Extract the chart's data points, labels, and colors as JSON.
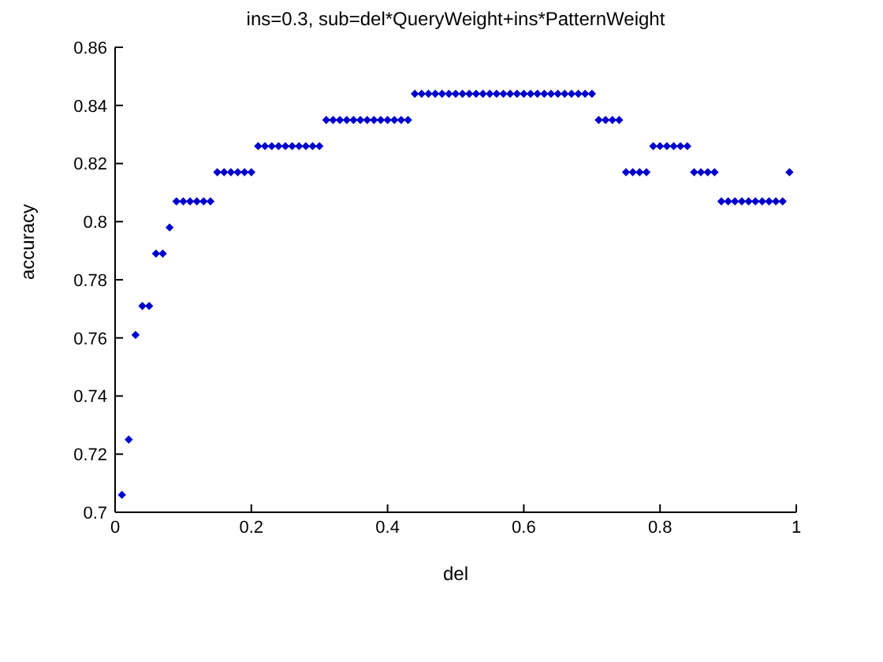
{
  "chart_data": {
    "type": "scatter",
    "title": "ins=0.3, sub=del*QueryWeight+ins*PatternWeight",
    "xlabel": "del",
    "ylabel": "accuracy",
    "x": [
      0.01,
      0.02,
      0.03,
      0.04,
      0.05,
      0.06,
      0.07,
      0.08,
      0.09,
      0.1,
      0.11,
      0.12,
      0.13,
      0.14,
      0.15,
      0.16,
      0.17,
      0.18,
      0.19,
      0.2,
      0.21,
      0.22,
      0.23,
      0.24,
      0.25,
      0.26,
      0.27,
      0.28,
      0.29,
      0.3,
      0.31,
      0.32,
      0.33,
      0.34,
      0.35,
      0.36,
      0.37,
      0.38,
      0.39,
      0.4,
      0.41,
      0.42,
      0.43,
      0.44,
      0.45,
      0.46,
      0.47,
      0.48,
      0.49,
      0.5,
      0.51,
      0.52,
      0.53,
      0.54,
      0.55,
      0.56,
      0.57,
      0.58,
      0.59,
      0.6,
      0.61,
      0.62,
      0.63,
      0.64,
      0.65,
      0.66,
      0.67,
      0.68,
      0.69,
      0.7,
      0.71,
      0.72,
      0.73,
      0.74,
      0.75,
      0.76,
      0.77,
      0.78,
      0.79,
      0.8,
      0.81,
      0.82,
      0.83,
      0.84,
      0.85,
      0.86,
      0.87,
      0.88,
      0.89,
      0.9,
      0.91,
      0.92,
      0.93,
      0.94,
      0.95,
      0.96,
      0.97,
      0.98,
      0.99
    ],
    "series": [
      {
        "color": "#0000cc",
        "values": [
          0.706,
          0.725,
          0.761,
          0.771,
          0.771,
          0.789,
          0.789,
          0.798,
          0.807,
          0.807,
          0.807,
          0.807,
          0.807,
          0.807,
          0.817,
          0.817,
          0.817,
          0.817,
          0.817,
          0.817,
          0.826,
          0.826,
          0.826,
          0.826,
          0.826,
          0.826,
          0.826,
          0.826,
          0.826,
          0.826,
          0.835,
          0.835,
          0.835,
          0.835,
          0.835,
          0.835,
          0.835,
          0.835,
          0.835,
          0.835,
          0.835,
          0.835,
          0.835,
          0.844,
          0.844,
          0.844,
          0.844,
          0.844,
          0.844,
          0.844,
          0.844,
          0.844,
          0.844,
          0.844,
          0.844,
          0.844,
          0.844,
          0.844,
          0.844,
          0.844,
          0.844,
          0.844,
          0.844,
          0.844,
          0.844,
          0.844,
          0.844,
          0.844,
          0.844,
          0.844,
          0.835,
          0.835,
          0.835,
          0.835,
          0.817,
          0.817,
          0.817,
          0.817,
          0.826,
          0.826,
          0.826,
          0.826,
          0.826,
          0.826,
          0.817,
          0.817,
          0.817,
          0.817,
          0.807,
          0.807,
          0.807,
          0.807,
          0.807,
          0.807,
          0.807,
          0.807,
          0.807,
          0.807,
          0.817
        ]
      }
    ],
    "xlim": [
      0,
      1
    ],
    "xticks": [
      0,
      0.2,
      0.4,
      0.6,
      0.8,
      1
    ],
    "ylim": [
      0.7,
      0.86
    ],
    "yticks": [
      0.7,
      0.72,
      0.74,
      0.76,
      0.78,
      0.8,
      0.82,
      0.84,
      0.86
    ],
    "grid": false,
    "legend": false,
    "marker": "diamond"
  }
}
